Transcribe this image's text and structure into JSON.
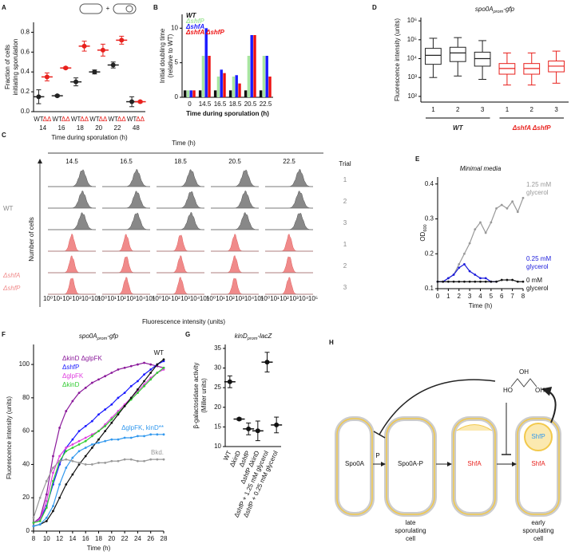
{
  "chart_data": [
    {
      "panel": "A",
      "type": "dot",
      "legend_symbol": "+",
      "xlabel": "Time during sporulation (h)",
      "ylabel": [
        "Fraction of cells",
        "initiating sporulation"
      ],
      "categories": [
        "14",
        "16",
        "18",
        "20",
        "22",
        "48"
      ],
      "series": [
        {
          "name": "WT",
          "color": "#222222",
          "values": [
            0.15,
            0.16,
            0.3,
            0.4,
            0.47,
            0.1
          ],
          "errors": [
            0.07,
            0.01,
            0.04,
            0.02,
            0.03,
            0.05
          ]
        },
        {
          "name": "ΔΔ",
          "color": "#e8201c",
          "values": [
            0.35,
            0.44,
            0.66,
            0.62,
            0.72,
            0.1
          ],
          "errors": [
            0.04,
            0.01,
            0.05,
            0.06,
            0.04,
            0.01
          ]
        }
      ],
      "ylim": [
        0,
        0.9
      ],
      "yticks": [
        {
          "value": 0,
          "label": "0.0"
        },
        0.2,
        0.4,
        0.6,
        0.8
      ]
    },
    {
      "panel": "B",
      "type": "bar",
      "xlabel": "Time during sporulation (h)",
      "ylabel": [
        "Initial doubling time",
        "(relative to WT)"
      ],
      "categories": [
        "0",
        "14.5",
        "16.5",
        "18.5",
        "20.5",
        "22.5"
      ],
      "series": [
        {
          "name": "WT",
          "color": "#111111",
          "values": [
            1,
            1,
            1,
            1,
            1,
            1
          ]
        },
        {
          "name": "ΔshfP",
          "color": "#a8e6a0",
          "values": [
            1,
            6,
            3,
            3,
            6,
            6
          ]
        },
        {
          "name": "ΔshfA",
          "color": "#1a1aff",
          "values": [
            1,
            10,
            4,
            3.2,
            9,
            6
          ]
        },
        {
          "name": "ΔshfA ΔshfP",
          "color": "#ee1111",
          "values": [
            1,
            6,
            3.5,
            2,
            9,
            3
          ]
        }
      ],
      "ylim": [
        0,
        12
      ],
      "yticks": [
        0,
        5,
        10
      ]
    },
    {
      "panel": "D",
      "type": "box",
      "title": "spo0Aprom-gfp",
      "ylabel": "Fluorescence intensity (units)",
      "yscale": "log",
      "categories": [
        "1",
        "2",
        "3"
      ],
      "series": [
        {
          "name": "WT",
          "color": "#222222",
          "boxes": [
            {
              "min": 1000,
              "q1": 5000,
              "median": 15000,
              "q3": 35000,
              "max": 120000
            },
            {
              "min": 1200,
              "q1": 7000,
              "median": 20000,
              "q3": 40000,
              "max": 130000
            },
            {
              "min": 800,
              "q1": 4000,
              "median": 10000,
              "q3": 22000,
              "max": 90000
            }
          ]
        },
        {
          "name": "ΔshfA ΔshfP",
          "color": "#e8201c",
          "boxes": [
            {
              "min": 400,
              "q1": 1500,
              "median": 3000,
              "q3": 5500,
              "max": 20000
            },
            {
              "min": 400,
              "q1": 1500,
              "median": 3000,
              "q3": 5500,
              "max": 20000
            },
            {
              "min": 500,
              "q1": 2000,
              "median": 4000,
              "q3": 7500,
              "max": 25000
            }
          ]
        }
      ],
      "ylim": [
        50,
        1500000
      ],
      "yticks": [
        {
          "value": 100,
          "label": "10²"
        },
        {
          "value": 1000,
          "label": "10³"
        },
        {
          "value": 10000,
          "label": "10⁴"
        },
        {
          "value": 100000,
          "label": "10⁵"
        },
        {
          "value": 1000000,
          "label": "10⁶"
        }
      ]
    },
    {
      "panel": "E",
      "type": "line",
      "title": "Minimal media",
      "xlabel": "Time (h)",
      "ylabel": "OD600",
      "x": [
        0,
        0.5,
        1,
        1.5,
        2,
        2.5,
        3,
        3.5,
        4,
        4.5,
        5,
        5.5,
        6,
        6.5,
        7,
        7.5,
        8
      ],
      "series": [
        {
          "name": "1.25 mM glycerol",
          "color": "#999999",
          "values": [
            0.12,
            0.12,
            0.13,
            0.14,
            0.17,
            0.2,
            0.23,
            0.27,
            0.29,
            0.26,
            0.29,
            0.33,
            0.34,
            0.33,
            0.35,
            0.32,
            0.36
          ]
        },
        {
          "name": "0.25 mM glycerol",
          "color": "#1a1adb",
          "values": [
            0.12,
            0.12,
            0.13,
            0.14,
            0.16,
            0.17,
            0.15,
            0.14,
            0.13,
            0.13,
            0.12,
            0.12,
            null,
            null,
            null,
            null,
            null
          ]
        },
        {
          "name": "0 mM glycerol",
          "color": "#111111",
          "values": [
            0.12,
            0.12,
            0.12,
            0.12,
            0.12,
            0.12,
            0.12,
            0.12,
            0.12,
            0.12,
            0.12,
            0.12,
            0.125,
            0.125,
            0.125,
            0.12,
            0.12
          ]
        }
      ],
      "xlim": [
        0,
        8
      ],
      "xticks": [
        0,
        1,
        2,
        3,
        4,
        5,
        6,
        7,
        8
      ],
      "ylim": [
        0.1,
        0.42
      ],
      "yticks": [
        0.1,
        0.2,
        0.3,
        0.4
      ]
    },
    {
      "panel": "F",
      "type": "line",
      "title": "spo0Aprom-gfp",
      "xlabel": "Time (h)",
      "ylabel": "Fluorescence intensity (units)",
      "x": [
        8,
        9,
        10,
        11,
        12,
        13,
        14,
        15,
        16,
        17,
        18,
        19,
        20,
        21,
        22,
        23,
        24,
        25,
        26,
        27,
        28
      ],
      "series": [
        {
          "name": "ΔkinD ΔglpFK",
          "color": "#8b1a9b",
          "values": [
            5,
            8,
            22,
            45,
            62,
            72,
            78,
            83,
            86,
            89,
            91,
            93,
            95,
            97,
            98,
            99,
            100,
            101,
            100,
            99,
            98
          ]
        },
        {
          "name": "ΔshfP",
          "color": "#1a1aff",
          "values": [
            5,
            7,
            15,
            28,
            40,
            50,
            55,
            60,
            63,
            66,
            70,
            73,
            76,
            80,
            83,
            87,
            90,
            94,
            97,
            100,
            102
          ]
        },
        {
          "name": "ΔglpFK",
          "color": "#e040e0",
          "values": [
            5,
            7,
            18,
            35,
            45,
            50,
            52,
            54,
            56,
            58,
            60,
            64,
            68,
            72,
            76,
            80,
            84,
            88,
            92,
            95,
            97
          ]
        },
        {
          "name": "ΔkinD",
          "color": "#33cc33",
          "values": [
            5,
            6,
            14,
            30,
            42,
            48,
            50,
            52,
            54,
            57,
            60,
            63,
            67,
            71,
            75,
            79,
            83,
            87,
            91,
            95,
            98
          ]
        },
        {
          "name": "WT",
          "color": "#111111",
          "label_at": "end",
          "values": [
            3,
            4,
            6,
            12,
            20,
            28,
            34,
            40,
            45,
            50,
            55,
            60,
            65,
            70,
            75,
            80,
            85,
            90,
            95,
            100,
            103
          ]
        },
        {
          "name": "ΔglpFK, kinD**",
          "color": "#3399ee",
          "label_at": "end",
          "values": [
            3,
            4,
            8,
            15,
            28,
            38,
            44,
            48,
            50,
            52,
            53,
            54,
            55,
            55,
            56,
            56,
            57,
            57,
            58,
            58,
            58
          ]
        },
        {
          "name": "Bkd.",
          "color": "#999999",
          "label_at": "end",
          "values": [
            8,
            20,
            30,
            38,
            42,
            43,
            42,
            41,
            40,
            40,
            41,
            41,
            42,
            42,
            43,
            43,
            42,
            42,
            43,
            43,
            43
          ]
        }
      ],
      "xlim": [
        8,
        28
      ],
      "xticks": [
        8,
        10,
        12,
        14,
        16,
        18,
        20,
        22,
        24,
        26,
        28
      ],
      "ylim": [
        0,
        112
      ],
      "yticks": [
        0,
        20,
        40,
        60,
        80,
        100
      ]
    },
    {
      "panel": "G",
      "type": "dot",
      "title": "kinDprom-lacZ",
      "ylabel": [
        "β-galactosidase activity",
        "(Miller units)"
      ],
      "rotated_labels": true,
      "categories": [
        "WT",
        "ΔkinD",
        "ΔshfP",
        "ΔshfP ΔkinD",
        "ΔshfP + 1.25 mM glycerol",
        "ΔshfP + 0.25 mM glycerol"
      ],
      "series": [
        {
          "name": "β-galactosidase activity",
          "color": "#111111",
          "values": [
            26.5,
            17,
            14.5,
            14,
            31.5,
            15.5
          ],
          "errors": [
            1.5,
            0.3,
            1.5,
            2.5,
            2.5,
            2
          ]
        }
      ],
      "ylim": [
        10,
        36
      ],
      "yticks": [
        10,
        15,
        20,
        25,
        30,
        35
      ]
    }
  ],
  "histogram_panel": {
    "panel": "C",
    "header": "Time (h)",
    "times": [
      "14.5",
      "16.5",
      "18.5",
      "20.5",
      "22.5"
    ],
    "trial_header": "Trial",
    "trials": [
      "1",
      "2",
      "3",
      "1",
      "2",
      "3"
    ],
    "group_labels": [
      [
        "WT"
      ],
      [
        "ΔshfA",
        "ΔshfP"
      ]
    ],
    "group_colors": [
      "#888888",
      "#f08a8a"
    ],
    "ylabel": "Number of cells",
    "xlabel": "Fluorescence intensity (units)",
    "xtick_labels": [
      "10⁰",
      "10¹",
      "10²",
      "10³",
      "10⁴",
      "10⁵"
    ]
  },
  "diagram": {
    "panel": "H",
    "spo0a": "Spo0A",
    "phospho": "P",
    "spo0a_p": "Spo0A-P",
    "shfa": "ShfA",
    "shfp": "ShfP",
    "late": [
      "late",
      "sporulating",
      "cell"
    ],
    "early": [
      "early",
      "sporulating",
      "cell"
    ],
    "glycerol": [
      "HO",
      "OH",
      "OH"
    ]
  }
}
